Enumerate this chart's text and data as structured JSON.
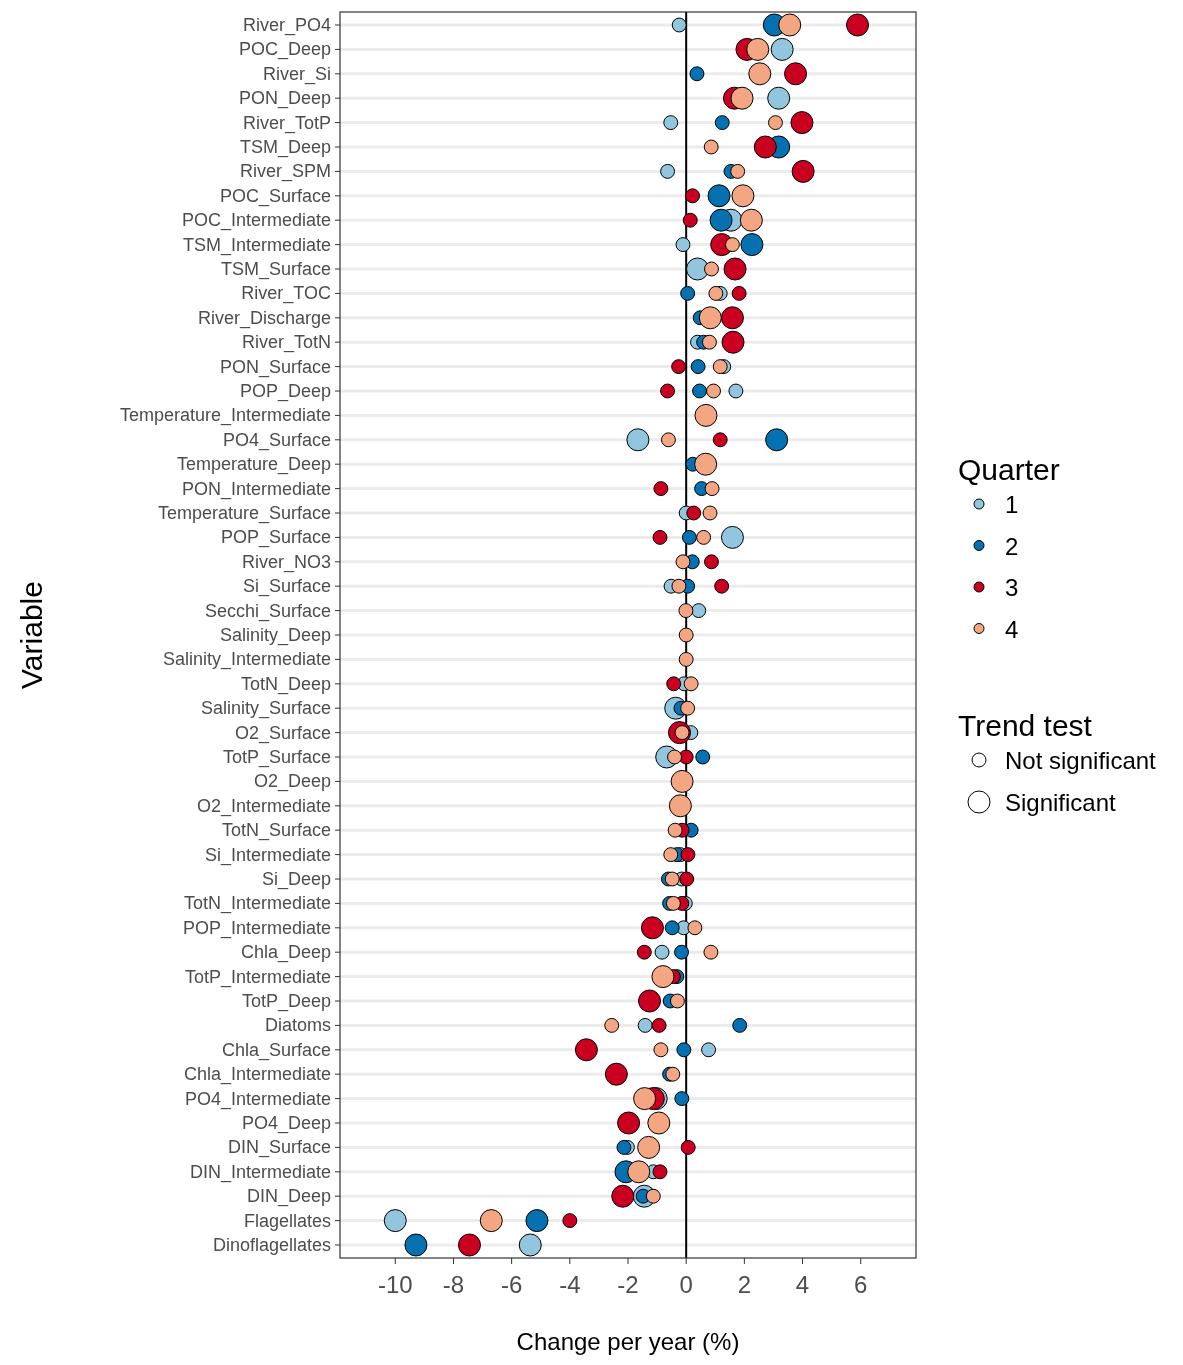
{
  "chart_data": {
    "type": "bubble",
    "orientation": "horizontal",
    "xlabel": "Change per year (%)",
    "ylabel": "Variable",
    "legend_title": "Quarter",
    "legend": "right",
    "marker": "circle",
    "grid": "y",
    "annotations": [
      "Trend test"
    ],
    "size_legend": [
      {
        "value": 0.4,
        "label": "Not significant"
      },
      {
        "value": 1,
        "label": "Significant"
      }
    ],
    "xlim": [
      -11.9,
      7.9
    ],
    "xticks": [
      -10,
      -8,
      -6,
      -4,
      -2,
      0,
      2,
      4,
      6
    ],
    "ref_lines": [
      {
        "axis": "x",
        "value": 0,
        "color": "#000000"
      }
    ],
    "categories": [
      "River_PO4",
      "POC_Deep",
      "River_Si",
      "PON_Deep",
      "River_TotP",
      "TSM_Deep",
      "River_SPM",
      "POC_Surface",
      "POC_Intermediate",
      "TSM_Intermediate",
      "TSM_Surface",
      "River_TOC",
      "River_Discharge",
      "River_TotN",
      "PON_Surface",
      "POP_Deep",
      "Temperature_Intermediate",
      "PO4_Surface",
      "Temperature_Deep",
      "PON_Intermediate",
      "Temperature_Surface",
      "POP_Surface",
      "River_NO3",
      "Si_Surface",
      "Secchi_Surface",
      "Salinity_Deep",
      "Salinity_Intermediate",
      "TotN_Deep",
      "Salinity_Surface",
      "O2_Surface",
      "TotP_Surface",
      "O2_Deep",
      "O2_Intermediate",
      "TotN_Surface",
      "Si_Intermediate",
      "Si_Deep",
      "TotN_Intermediate",
      "POP_Intermediate",
      "Chla_Deep",
      "TotP_Intermediate",
      "TotP_Deep",
      "Diatoms",
      "Chla_Surface",
      "Chla_Intermediate",
      "PO4_Intermediate",
      "PO4_Deep",
      "DIN_Surface",
      "DIN_Intermediate",
      "DIN_Deep",
      "Flagellates",
      "Dinoflagellates"
    ],
    "series": [
      {
        "name": "1",
        "color": "#92c5de",
        "values": [
          -0.24,
          3.3,
          null,
          3.18,
          -0.53,
          null,
          -0.64,
          null,
          1.54,
          -0.11,
          0.39,
          1.17,
          null,
          0.39,
          1.29,
          1.71,
          null,
          -1.66,
          null,
          null,
          0.0,
          1.59,
          null,
          -0.52,
          0.43,
          null,
          null,
          -0.07,
          -0.36,
          0.16,
          -0.67,
          null,
          null,
          null,
          -0.2,
          -0.15,
          -0.03,
          -0.09,
          -0.83,
          null,
          null,
          -1.41,
          0.77,
          null,
          -1.03,
          null,
          -2.02,
          -1.13,
          -1.44,
          -10.0,
          -5.36
        ],
        "sizes": [
          0.4,
          1,
          null,
          1,
          0.4,
          null,
          0.4,
          null,
          1,
          0.4,
          1,
          0.4,
          null,
          0.4,
          0.4,
          0.4,
          null,
          1,
          null,
          null,
          0.4,
          1,
          null,
          0.4,
          0.4,
          null,
          null,
          0.4,
          1,
          0.4,
          1,
          null,
          null,
          null,
          0.4,
          0.4,
          0.4,
          0.4,
          0.4,
          null,
          null,
          0.4,
          0.4,
          null,
          1,
          null,
          0.4,
          0.4,
          1,
          1,
          1
        ]
      },
      {
        "name": "2",
        "color": "#0571b0",
        "values": [
          3.03,
          null,
          0.37,
          null,
          1.24,
          3.18,
          1.54,
          1.13,
          1.2,
          2.26,
          null,
          0.05,
          0.48,
          0.6,
          0.41,
          0.46,
          null,
          3.11,
          0.23,
          0.53,
          null,
          0.11,
          0.21,
          0.05,
          null,
          null,
          null,
          null,
          -0.18,
          null,
          0.57,
          null,
          null,
          0.17,
          -0.32,
          -0.61,
          -0.57,
          -0.48,
          -0.16,
          -0.32,
          -0.55,
          1.84,
          -0.08,
          -0.57,
          -0.15,
          null,
          -2.14,
          -2.07,
          -1.48,
          -5.13,
          -9.29
        ],
        "sizes": [
          1,
          null,
          0.4,
          null,
          0.4,
          1,
          0.4,
          1,
          1,
          1,
          null,
          0.4,
          0.4,
          0.4,
          0.4,
          0.4,
          null,
          1,
          0.4,
          0.4,
          null,
          0.4,
          0.4,
          0.4,
          null,
          null,
          null,
          null,
          0.4,
          null,
          0.4,
          null,
          null,
          0.4,
          0.4,
          0.4,
          0.4,
          0.4,
          0.4,
          0.4,
          0.4,
          0.4,
          0.4,
          0.4,
          0.4,
          null,
          0.4,
          1,
          0.4,
          1,
          1
        ]
      },
      {
        "name": "3",
        "color": "#ca0020",
        "values": [
          5.89,
          2.09,
          3.76,
          1.66,
          3.98,
          2.72,
          4.02,
          0.22,
          0.14,
          1.22,
          1.68,
          1.82,
          1.59,
          1.61,
          -0.26,
          -0.64,
          null,
          1.17,
          null,
          -0.87,
          0.26,
          -0.9,
          0.87,
          1.22,
          null,
          null,
          null,
          -0.43,
          null,
          -0.23,
          0.0,
          null,
          null,
          -0.14,
          0.06,
          0.02,
          -0.15,
          -1.16,
          -1.44,
          -0.44,
          -1.26,
          -0.93,
          -3.43,
          -2.4,
          -1.13,
          -1.98,
          0.07,
          -0.9,
          -2.18,
          -4.0,
          -7.45
        ],
        "sizes": [
          1,
          1,
          1,
          1,
          1,
          1,
          1,
          0.4,
          0.4,
          1,
          1,
          0.4,
          1,
          1,
          0.4,
          0.4,
          null,
          0.4,
          null,
          0.4,
          0.4,
          0.4,
          0.4,
          0.4,
          null,
          null,
          null,
          0.4,
          null,
          1,
          0.4,
          null,
          null,
          0.4,
          0.4,
          0.4,
          0.4,
          1,
          0.4,
          0.4,
          1,
          0.4,
          1,
          1,
          1,
          1,
          0.4,
          0.4,
          1,
          0.4,
          1
        ]
      },
      {
        "name": "4",
        "color": "#f4a582",
        "values": [
          3.56,
          2.46,
          2.53,
          1.92,
          3.07,
          0.86,
          1.77,
          1.95,
          2.24,
          1.59,
          0.87,
          1.02,
          0.83,
          0.8,
          1.17,
          0.94,
          0.68,
          -0.61,
          0.67,
          0.89,
          0.82,
          0.6,
          -0.11,
          -0.25,
          -0.01,
          0.0,
          0.0,
          0.17,
          0.05,
          -0.14,
          -0.4,
          -0.14,
          -0.2,
          -0.38,
          -0.53,
          -0.48,
          -0.44,
          0.3,
          0.85,
          -0.8,
          -0.3,
          -2.56,
          -0.87,
          -0.46,
          -1.43,
          -0.94,
          -1.29,
          -1.63,
          -1.13,
          -6.7,
          null
        ],
        "sizes": [
          1,
          1,
          1,
          1,
          0.4,
          0.4,
          0.4,
          1,
          1,
          0.4,
          0.4,
          0.4,
          1,
          0.4,
          0.4,
          0.4,
          1,
          0.4,
          1,
          0.4,
          0.4,
          0.4,
          0.4,
          0.4,
          0.4,
          0.4,
          0.4,
          0.4,
          0.4,
          0.4,
          0.4,
          1,
          1,
          0.4,
          0.4,
          0.4,
          0.4,
          0.4,
          0.4,
          1,
          0.4,
          0.4,
          0.4,
          0.4,
          1,
          1,
          1,
          1,
          0.4,
          1,
          null
        ]
      }
    ]
  }
}
